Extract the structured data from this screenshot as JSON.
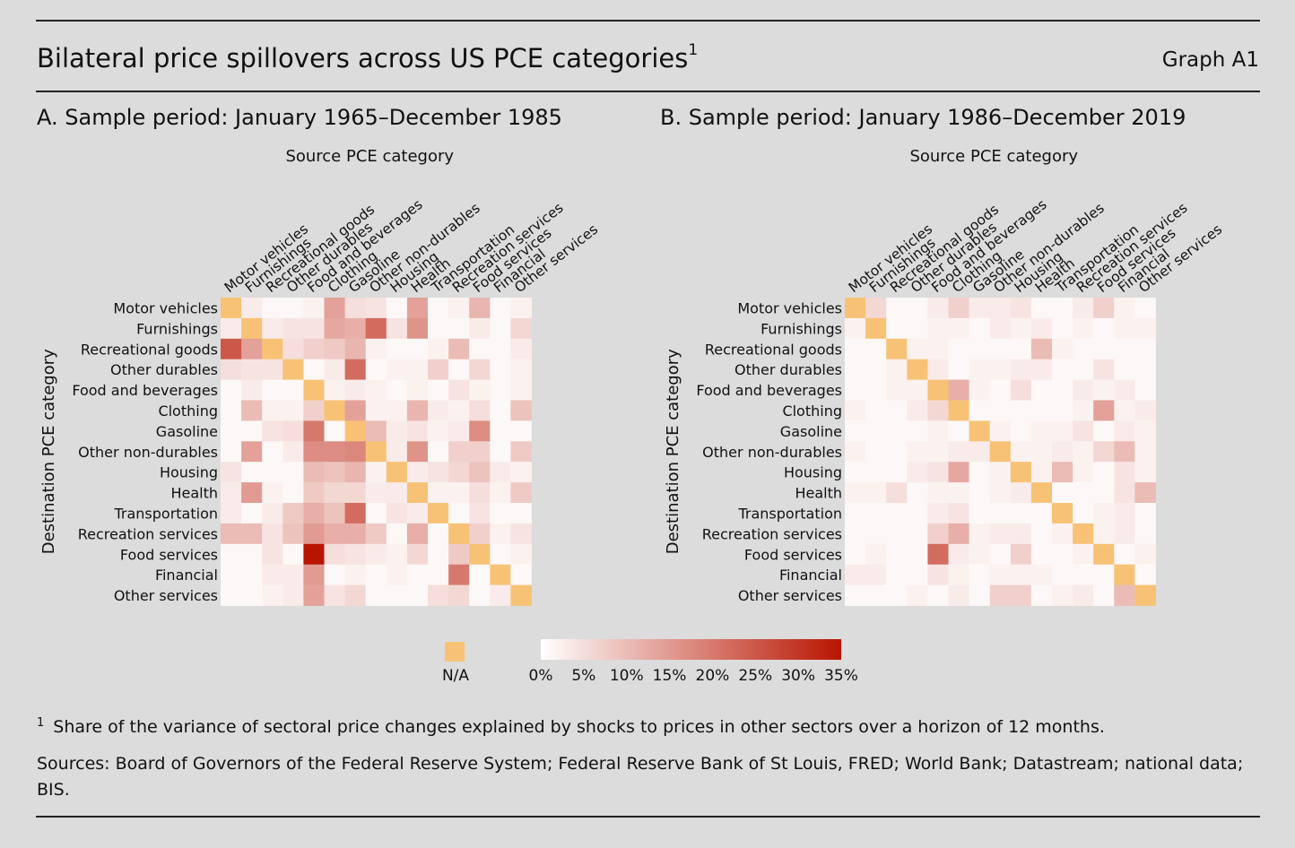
{
  "header": {
    "title": "Bilateral price spillovers across US PCE categories",
    "title_sup": "1",
    "graph_id": "Graph A1"
  },
  "chart_data": [
    {
      "type": "heatmap",
      "title": "A. Sample period: January 1965–December 1985",
      "xlabel": "Source PCE category",
      "ylabel": "Destination PCE category",
      "categories": [
        "Motor vehicles",
        "Furnishings",
        "Recreational goods",
        "Other durables",
        "Food and beverages",
        "Clothing",
        "Gasoline",
        "Other non-durables",
        "Housing",
        "Health",
        "Transportation",
        "Recreation services",
        "Food services",
        "Financial",
        "Other services"
      ],
      "unit": "%",
      "values": [
        [
          null,
          3,
          1,
          1,
          2,
          14,
          5,
          4,
          1,
          14,
          1,
          2,
          11,
          1,
          2
        ],
        [
          3,
          null,
          3,
          4,
          4,
          13,
          12,
          22,
          4,
          16,
          1,
          1,
          3,
          1,
          6
        ],
        [
          25,
          14,
          null,
          5,
          7,
          8,
          11,
          2,
          1,
          1,
          2,
          10,
          1,
          1,
          3
        ],
        [
          5,
          4,
          4,
          null,
          1,
          3,
          22,
          1,
          2,
          2,
          7,
          1,
          6,
          1,
          2
        ],
        [
          1,
          3,
          1,
          1,
          null,
          2,
          3,
          2,
          1,
          2,
          1,
          4,
          2,
          1,
          2
        ],
        [
          1,
          10,
          2,
          2,
          7,
          null,
          14,
          2,
          2,
          11,
          3,
          2,
          5,
          1,
          9
        ],
        [
          1,
          1,
          4,
          5,
          20,
          1,
          null,
          10,
          3,
          4,
          2,
          3,
          17,
          1,
          1
        ],
        [
          1,
          14,
          1,
          3,
          17,
          17,
          18,
          null,
          3,
          16,
          1,
          7,
          7,
          1,
          8
        ],
        [
          4,
          1,
          1,
          1,
          10,
          9,
          11,
          2,
          null,
          3,
          4,
          6,
          9,
          3,
          2
        ],
        [
          3,
          15,
          2,
          1,
          8,
          6,
          6,
          3,
          3,
          null,
          2,
          2,
          5,
          2,
          8
        ],
        [
          3,
          1,
          3,
          8,
          12,
          9,
          22,
          1,
          4,
          3,
          null,
          1,
          4,
          1,
          1
        ],
        [
          10,
          10,
          4,
          9,
          15,
          12,
          12,
          8,
          1,
          12,
          1,
          null,
          7,
          2,
          4
        ],
        [
          1,
          1,
          4,
          1,
          35,
          5,
          4,
          3,
          2,
          6,
          1,
          8,
          null,
          1,
          2
        ],
        [
          1,
          1,
          3,
          3,
          15,
          1,
          2,
          1,
          2,
          1,
          1,
          20,
          1,
          null,
          1
        ],
        [
          1,
          1,
          2,
          3,
          14,
          4,
          6,
          1,
          1,
          1,
          5,
          6,
          1,
          3,
          null
        ]
      ],
      "na_label": "N/A",
      "colorbar": {
        "min": 0,
        "max": 35,
        "ticks": [
          "0%",
          "5%",
          "10%",
          "15%",
          "20%",
          "25%",
          "30%",
          "35%"
        ],
        "low_color": "#ffffff",
        "high_color": "#b81500"
      },
      "na_color": "#f8c276"
    },
    {
      "type": "heatmap",
      "title": "B. Sample period: January 1986–December 2019",
      "xlabel": "Source PCE category",
      "ylabel": "Destination PCE category",
      "categories": [
        "Motor vehicles",
        "Furnishings",
        "Recreational goods",
        "Other durables",
        "Food and beverages",
        "Clothing",
        "Gasoline",
        "Other non-durables",
        "Housing",
        "Health",
        "Transportation",
        "Recreation services",
        "Food services",
        "Financial",
        "Other services"
      ],
      "unit": "%",
      "values": [
        [
          null,
          6,
          1,
          1,
          3,
          7,
          3,
          3,
          4,
          1,
          1,
          3,
          7,
          2,
          1
        ],
        [
          2,
          null,
          1,
          1,
          2,
          2,
          1,
          3,
          2,
          3,
          1,
          2,
          1,
          2,
          2
        ],
        [
          1,
          1,
          null,
          2,
          2,
          1,
          1,
          1,
          1,
          10,
          2,
          1,
          1,
          1,
          1
        ],
        [
          1,
          1,
          2,
          null,
          3,
          1,
          2,
          2,
          3,
          3,
          1,
          1,
          4,
          1,
          1
        ],
        [
          1,
          1,
          2,
          2,
          null,
          12,
          2,
          1,
          5,
          1,
          1,
          3,
          2,
          3,
          1
        ],
        [
          2,
          1,
          1,
          3,
          6,
          null,
          1,
          1,
          1,
          1,
          1,
          2,
          14,
          2,
          3
        ],
        [
          1,
          1,
          1,
          1,
          2,
          1,
          null,
          2,
          1,
          2,
          2,
          4,
          1,
          3,
          2
        ],
        [
          2,
          1,
          1,
          2,
          2,
          3,
          3,
          null,
          2,
          2,
          3,
          2,
          6,
          10,
          2
        ],
        [
          1,
          1,
          1,
          3,
          4,
          13,
          1,
          2,
          null,
          2,
          10,
          2,
          1,
          4,
          2
        ],
        [
          2,
          2,
          5,
          1,
          2,
          2,
          1,
          2,
          3,
          null,
          1,
          1,
          1,
          4,
          10
        ],
        [
          1,
          1,
          1,
          1,
          3,
          4,
          1,
          1,
          1,
          1,
          null,
          1,
          2,
          3,
          1
        ],
        [
          1,
          1,
          1,
          1,
          7,
          12,
          2,
          3,
          3,
          1,
          2,
          null,
          2,
          3,
          1
        ],
        [
          1,
          2,
          1,
          1,
          22,
          3,
          2,
          1,
          7,
          1,
          1,
          2,
          null,
          1,
          2
        ],
        [
          3,
          3,
          1,
          1,
          4,
          2,
          1,
          2,
          2,
          2,
          1,
          1,
          1,
          null,
          1
        ],
        [
          1,
          1,
          1,
          2,
          1,
          3,
          1,
          7,
          7,
          1,
          2,
          3,
          1,
          10,
          null
        ]
      ],
      "na_label": "N/A",
      "colorbar": {
        "min": 0,
        "max": 35,
        "ticks": [
          "0%",
          "5%",
          "10%",
          "15%",
          "20%",
          "25%",
          "30%",
          "35%"
        ],
        "low_color": "#ffffff",
        "high_color": "#b81500"
      },
      "na_color": "#f8c276"
    }
  ],
  "footnotes": {
    "note_marker": "1",
    "note": "Share of the variance of sectoral price changes explained by shocks to prices in other sectors over a horizon of 12 months.",
    "sources": "Sources: Board of Governors of the Federal Reserve System; Federal Reserve Bank of St Louis, FRED; World Bank; Datastream; national data; BIS."
  }
}
